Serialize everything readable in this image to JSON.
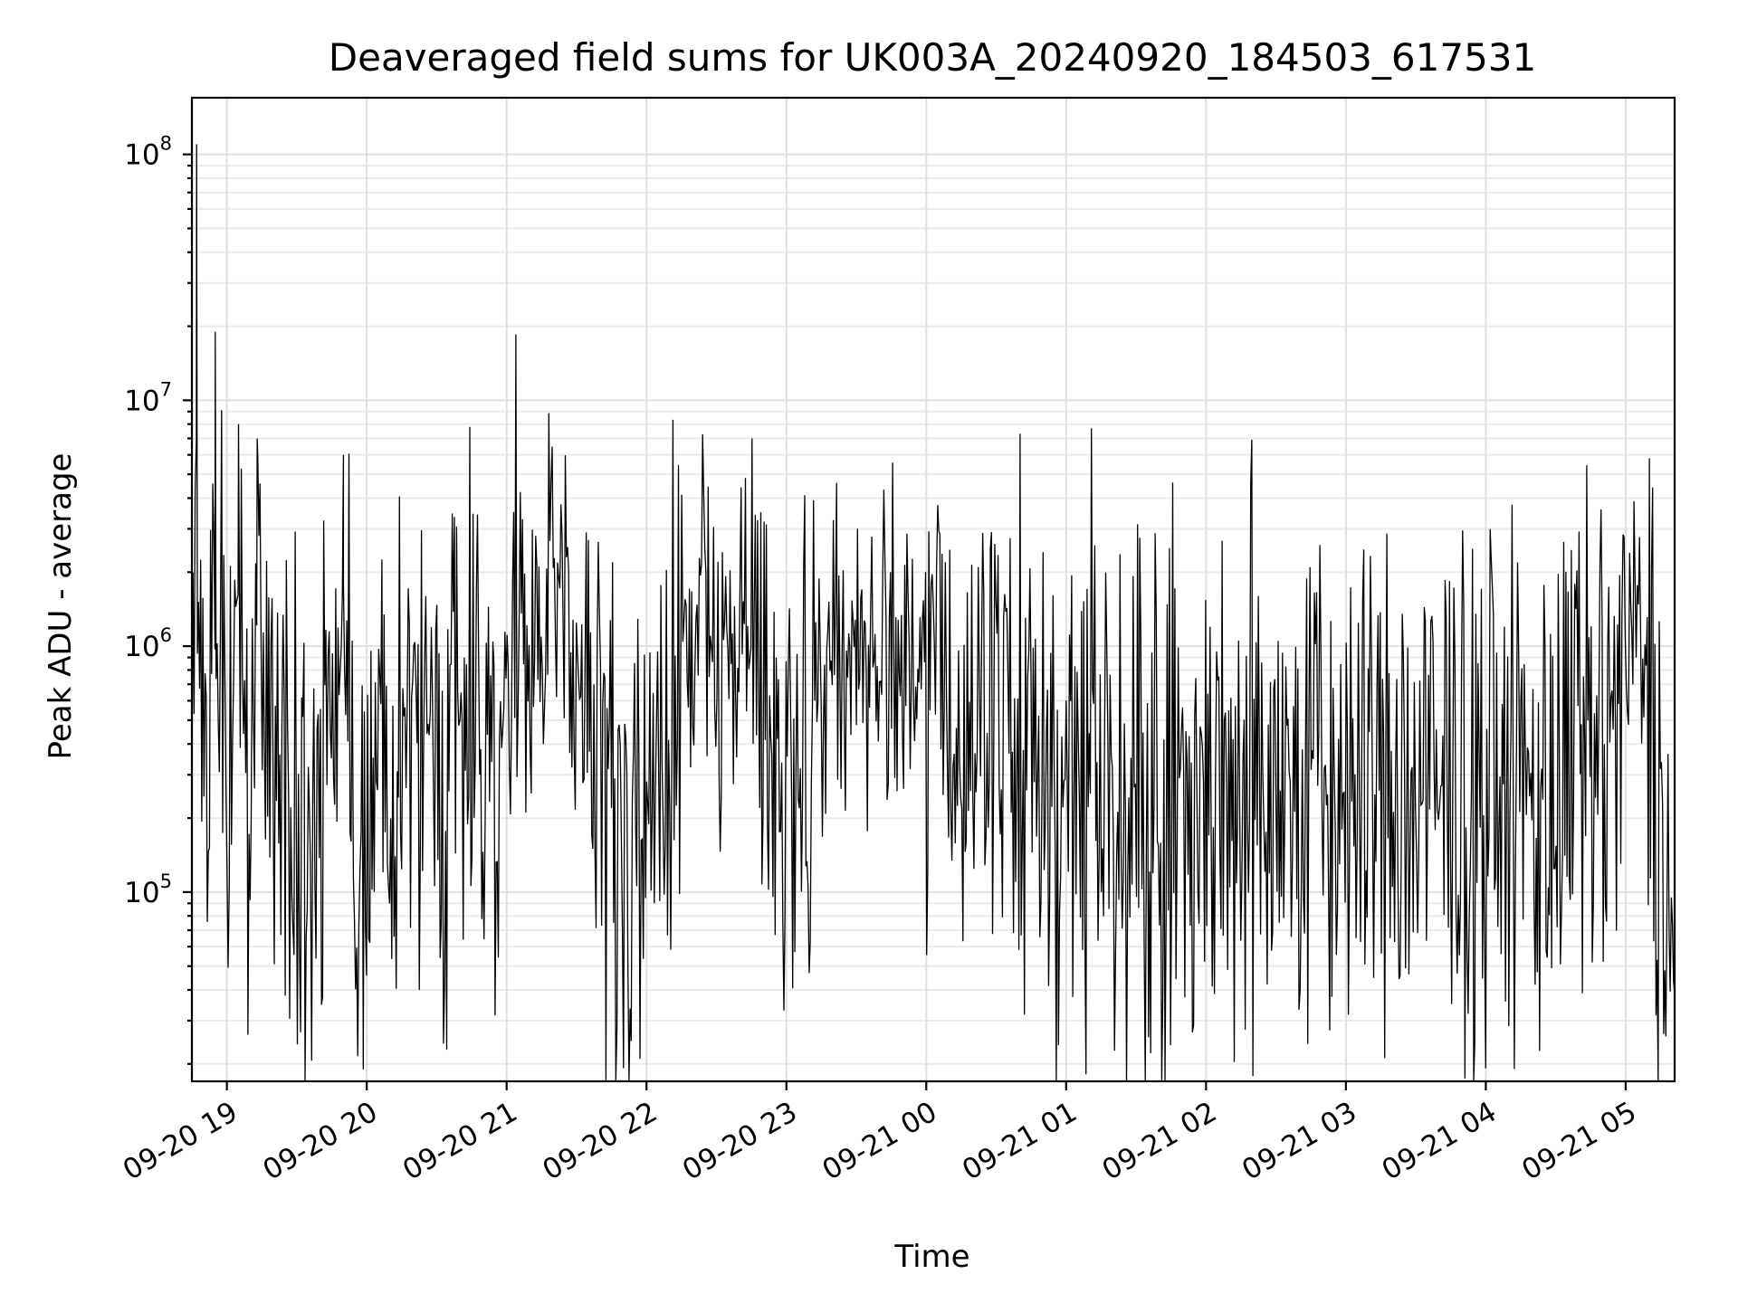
{
  "chart_data": {
    "type": "line",
    "title": "Deaveraged field sums for UK003A_20240920_184503_617531",
    "xlabel": "Time",
    "ylabel": "Peak ADU - average",
    "yscale": "log",
    "xlim": [
      "2024-09-20 18:45",
      "2024-09-21 05:21"
    ],
    "ylim": [
      17000,
      170000000
    ],
    "grid": "major and minor",
    "x_ticks": [
      "09-20 19",
      "09-20 20",
      "09-20 21",
      "09-20 22",
      "09-20 23",
      "09-21 00",
      "09-21 01",
      "09-21 02",
      "09-21 03",
      "09-21 04",
      "09-21 05"
    ],
    "y_ticks": [
      {
        "value": 100000,
        "base": "10",
        "exp": "5"
      },
      {
        "value": 1000000,
        "base": "10",
        "exp": "6"
      },
      {
        "value": 10000000,
        "base": "10",
        "exp": "7"
      },
      {
        "value": 100000000,
        "base": "10",
        "exp": "8"
      }
    ],
    "series": [
      {
        "color": "#000000",
        "x": [
          "2024-09-20 18:45",
          "2024-09-20 18:47",
          "2024-09-20 18:49",
          "2024-09-20 18:50",
          "2024-09-20 18:52",
          "2024-09-20 18:55",
          "2024-09-20 19:00",
          "2024-09-20 19:05",
          "2024-09-20 19:10",
          "2024-09-20 19:13",
          "2024-09-20 19:20",
          "2024-09-20 19:30",
          "2024-09-20 19:40",
          "2024-09-20 19:50",
          "2024-09-20 19:55",
          "2024-09-20 20:00",
          "2024-09-20 20:15",
          "2024-09-20 20:30",
          "2024-09-20 20:45",
          "2024-09-20 21:00",
          "2024-09-20 21:15",
          "2024-09-20 21:25",
          "2024-09-20 21:40",
          "2024-09-20 21:55",
          "2024-09-20 22:05",
          "2024-09-20 22:20",
          "2024-09-20 22:30",
          "2024-09-20 22:45",
          "2024-09-20 22:55",
          "2024-09-20 23:05",
          "2024-09-20 23:15",
          "2024-09-20 23:30",
          "2024-09-20 23:45",
          "2024-09-21 00:00",
          "2024-09-21 00:15",
          "2024-09-21 00:30",
          "2024-09-21 01:00",
          "2024-09-21 01:30",
          "2024-09-21 02:00",
          "2024-09-21 02:30",
          "2024-09-21 03:00",
          "2024-09-21 03:30",
          "2024-09-21 04:00",
          "2024-09-21 04:30",
          "2024-09-21 04:50",
          "2024-09-21 05:05",
          "2024-09-21 05:12",
          "2024-09-21 05:18",
          "2024-09-21 05:21"
        ],
        "y": [
          300000,
          110000000,
          400000,
          500000,
          300000,
          19000000,
          200000,
          8000000,
          150000,
          7000000,
          200000,
          150000,
          120000,
          6000000,
          150000,
          180000,
          250000,
          300000,
          600000,
          500000,
          1000000,
          1500000,
          200000,
          150000,
          300000,
          1200000,
          1000000,
          1200000,
          180000,
          200000,
          900000,
          1000000,
          900000,
          700000,
          450000,
          350000,
          300000,
          250000,
          250000,
          250000,
          250000,
          220000,
          220000,
          250000,
          350000,
          1100000,
          450000,
          100000,
          25000
        ]
      }
    ]
  }
}
